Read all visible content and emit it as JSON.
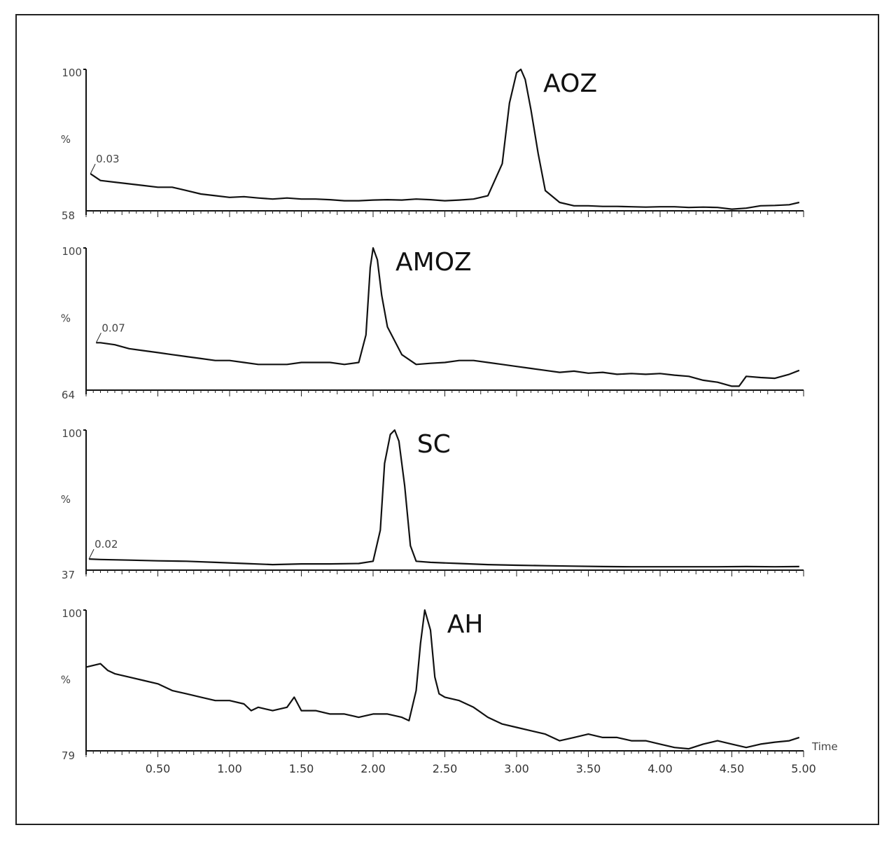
{
  "chart_data": [
    {
      "type": "line",
      "peak_label": "AOZ",
      "y_top_label": "100",
      "y_mid_label": "%",
      "y_bottom_label": "58",
      "start_annotation": "0.03",
      "xlim": [
        0.03,
        5.0
      ],
      "ylim": [
        58,
        100
      ],
      "x": [
        0.03,
        0.1,
        0.2,
        0.3,
        0.4,
        0.5,
        0.6,
        0.7,
        0.8,
        0.9,
        1.0,
        1.1,
        1.2,
        1.3,
        1.4,
        1.5,
        1.6,
        1.7,
        1.8,
        1.9,
        2.0,
        2.1,
        2.2,
        2.3,
        2.4,
        2.5,
        2.6,
        2.7,
        2.8,
        2.9,
        2.95,
        3.0,
        3.03,
        3.06,
        3.1,
        3.15,
        3.2,
        3.3,
        3.4,
        3.5,
        3.6,
        3.7,
        3.8,
        3.9,
        4.0,
        4.1,
        4.2,
        4.3,
        4.4,
        4.5,
        4.6,
        4.7,
        4.8,
        4.9,
        4.97
      ],
      "y": [
        69,
        67,
        66.5,
        66,
        65.5,
        65,
        65,
        64,
        63,
        62.5,
        62,
        62.2,
        61.8,
        61.5,
        61.8,
        61.5,
        61.5,
        61.3,
        61,
        61,
        61.2,
        61.3,
        61.2,
        61.5,
        61.3,
        61,
        61.2,
        61.5,
        62.5,
        72,
        90,
        99,
        100,
        97,
        88,
        75,
        64,
        60.5,
        59.5,
        59.5,
        59.3,
        59.3,
        59.2,
        59.1,
        59.2,
        59.2,
        59,
        59.1,
        59,
        58.5,
        58.8,
        59.5,
        59.6,
        59.8,
        60.5
      ]
    },
    {
      "type": "line",
      "peak_label": "AMOZ",
      "y_top_label": "100",
      "y_mid_label": "%",
      "y_bottom_label": "64",
      "start_annotation": "0.07",
      "xlim": [
        0.07,
        5.0
      ],
      "ylim": [
        64,
        100
      ],
      "x": [
        0.07,
        0.1,
        0.2,
        0.3,
        0.4,
        0.5,
        0.6,
        0.7,
        0.8,
        0.9,
        1.0,
        1.1,
        1.2,
        1.3,
        1.4,
        1.5,
        1.6,
        1.7,
        1.8,
        1.9,
        1.95,
        1.98,
        2.0,
        2.03,
        2.06,
        2.1,
        2.2,
        2.3,
        2.4,
        2.5,
        2.6,
        2.7,
        2.8,
        2.9,
        3.0,
        3.1,
        3.2,
        3.3,
        3.4,
        3.5,
        3.6,
        3.7,
        3.8,
        3.9,
        4.0,
        4.1,
        4.2,
        4.3,
        4.4,
        4.5,
        4.55,
        4.6,
        4.7,
        4.8,
        4.9,
        4.97
      ],
      "y": [
        76,
        76,
        75.5,
        74.5,
        74,
        73.5,
        73,
        72.5,
        72,
        71.5,
        71.5,
        71,
        70.5,
        70.5,
        70.5,
        71,
        71,
        71,
        70.5,
        71,
        78,
        95,
        100,
        97,
        88,
        80,
        73,
        70.5,
        70.8,
        71,
        71.5,
        71.5,
        71,
        70.5,
        70,
        69.5,
        69,
        68.5,
        68.8,
        68.3,
        68.5,
        68,
        68.2,
        68,
        68.2,
        67.8,
        67.5,
        66.5,
        66,
        65,
        65,
        67.5,
        67.2,
        67,
        68,
        69
      ]
    },
    {
      "type": "line",
      "peak_label": "SC",
      "y_top_label": "100",
      "y_mid_label": "%",
      "y_bottom_label": "37",
      "start_annotation": "0.02",
      "xlim": [
        0.02,
        5.0
      ],
      "ylim": [
        37,
        100
      ],
      "x": [
        0.02,
        0.1,
        0.3,
        0.5,
        0.7,
        0.9,
        1.1,
        1.3,
        1.5,
        1.7,
        1.9,
        2.0,
        2.05,
        2.08,
        2.12,
        2.15,
        2.18,
        2.22,
        2.26,
        2.3,
        2.4,
        2.6,
        2.8,
        3.0,
        3.2,
        3.4,
        3.6,
        3.8,
        4.0,
        4.2,
        4.4,
        4.6,
        4.8,
        4.97
      ],
      "y": [
        42,
        41.8,
        41.5,
        41.2,
        41,
        40.5,
        40,
        39.5,
        39.8,
        39.8,
        40,
        41,
        55,
        85,
        98,
        100,
        95,
        75,
        48,
        41,
        40.5,
        40,
        39.5,
        39.2,
        39,
        38.8,
        38.6,
        38.5,
        38.5,
        38.5,
        38.5,
        38.6,
        38.5,
        38.6
      ]
    },
    {
      "type": "line",
      "peak_label": "AH",
      "y_top_label": "100",
      "y_mid_label": "%",
      "y_bottom_label": "79",
      "start_annotation": "",
      "xlim": [
        0.0,
        5.0
      ],
      "ylim": [
        79,
        100
      ],
      "x_tick_labels": [
        "0.50",
        "1.00",
        "1.50",
        "2.00",
        "2.50",
        "3.00",
        "3.50",
        "4.00",
        "4.50",
        "5.00"
      ],
      "x_tick_values": [
        0.5,
        1.0,
        1.5,
        2.0,
        2.5,
        3.0,
        3.5,
        4.0,
        4.5,
        5.0
      ],
      "xlabel": "Time",
      "x": [
        0.0,
        0.1,
        0.15,
        0.2,
        0.3,
        0.4,
        0.5,
        0.6,
        0.7,
        0.8,
        0.9,
        1.0,
        1.1,
        1.15,
        1.2,
        1.3,
        1.4,
        1.45,
        1.5,
        1.6,
        1.7,
        1.8,
        1.9,
        2.0,
        2.1,
        2.2,
        2.25,
        2.3,
        2.33,
        2.36,
        2.4,
        2.43,
        2.46,
        2.5,
        2.6,
        2.7,
        2.8,
        2.9,
        3.0,
        3.1,
        3.2,
        3.3,
        3.4,
        3.5,
        3.6,
        3.7,
        3.8,
        3.9,
        4.0,
        4.1,
        4.2,
        4.3,
        4.4,
        4.5,
        4.6,
        4.7,
        4.8,
        4.9,
        4.97
      ],
      "y": [
        91.5,
        92,
        91,
        90.5,
        90,
        89.5,
        89,
        88,
        87.5,
        87,
        86.5,
        86.5,
        86,
        85,
        85.5,
        85,
        85.5,
        87,
        85,
        85,
        84.5,
        84.5,
        84,
        84.5,
        84.5,
        84,
        83.5,
        88,
        95,
        100,
        97,
        90,
        87.5,
        87,
        86.5,
        85.5,
        84,
        83,
        82.5,
        82,
        81.5,
        80.5,
        81,
        81.5,
        81,
        81,
        80.5,
        80.5,
        80,
        79.5,
        79.3,
        80,
        80.5,
        80,
        79.5,
        80,
        80.3,
        80.5,
        81
      ]
    }
  ]
}
